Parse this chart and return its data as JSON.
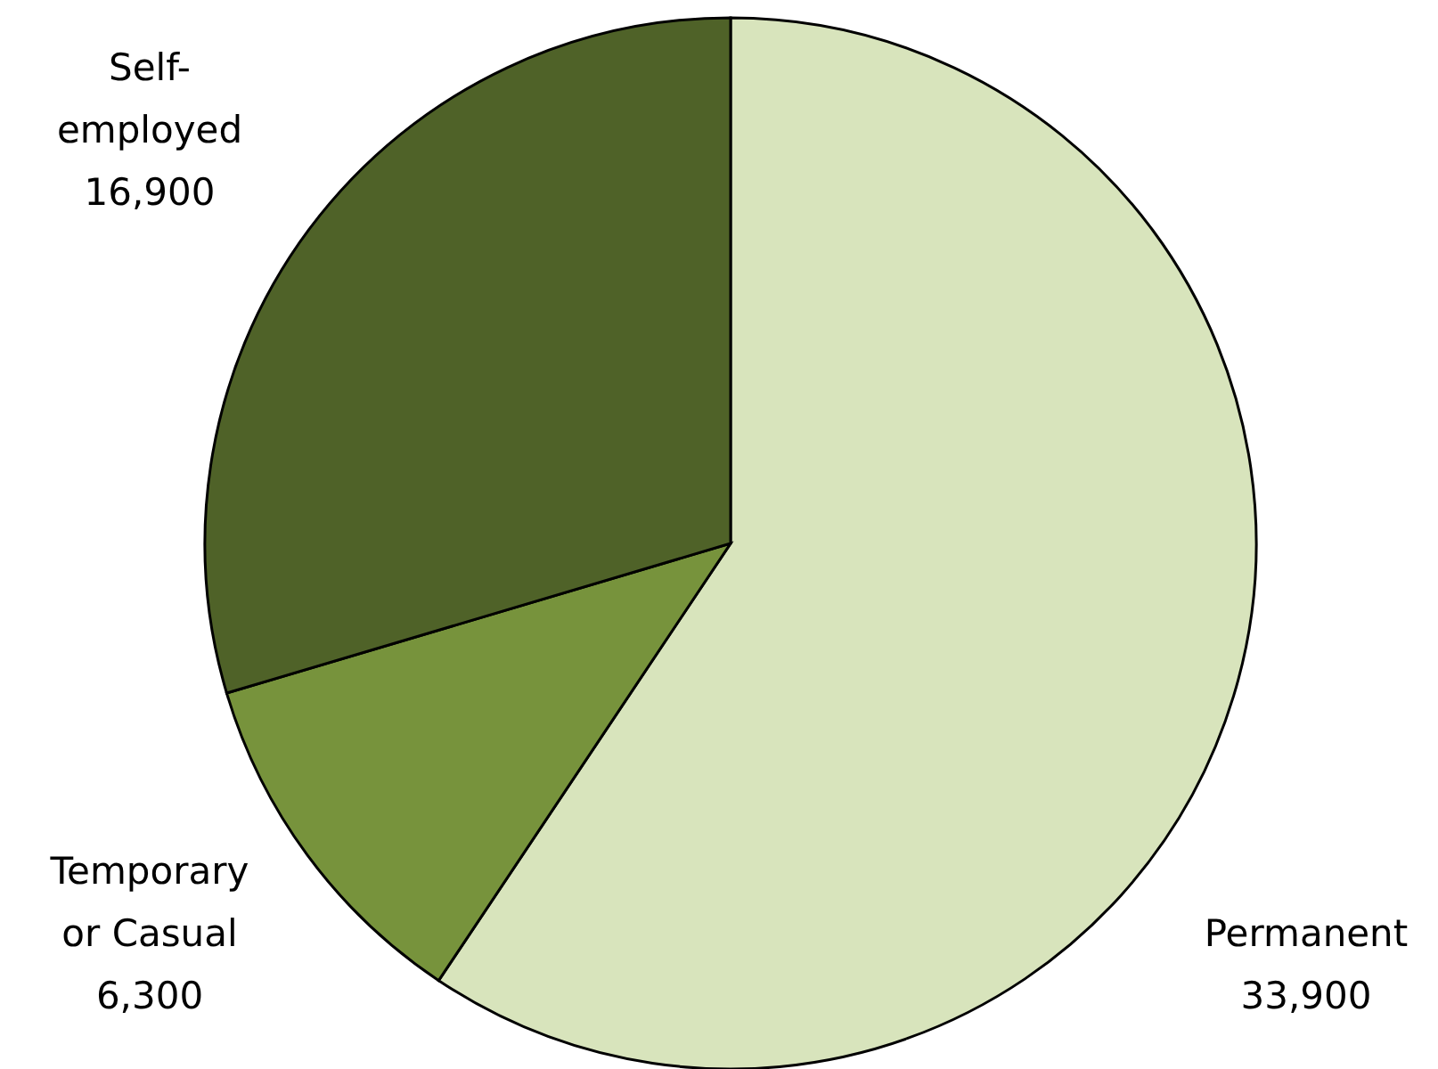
{
  "chart_data": {
    "type": "pie",
    "categories": [
      "Permanent",
      "Temporary or Casual",
      "Self-employed"
    ],
    "values": [
      33900,
      6300,
      16900
    ],
    "value_labels": [
      "33,900",
      "6,300",
      "16,900"
    ],
    "colors": [
      "#d8e4bc",
      "#77933c",
      "#4f6228"
    ]
  }
}
